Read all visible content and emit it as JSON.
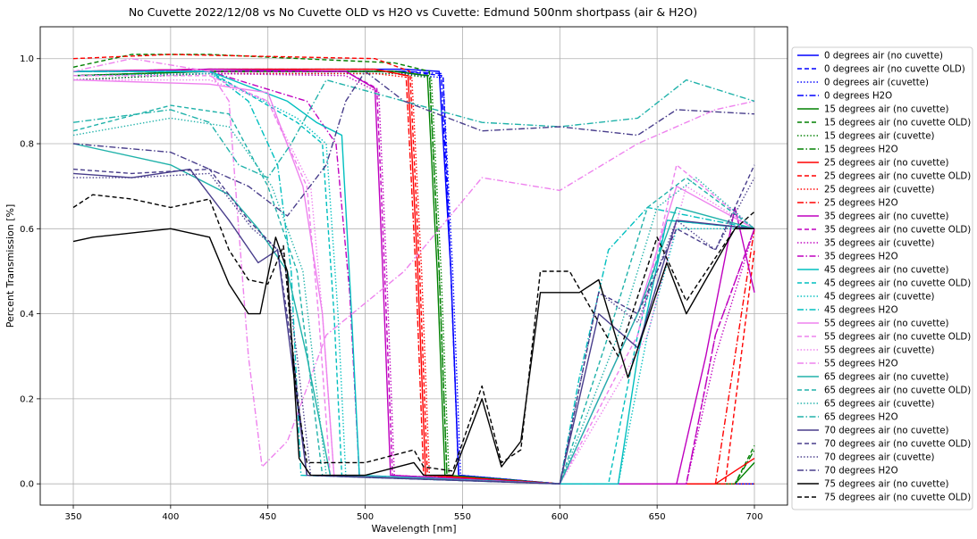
{
  "chart_data": {
    "type": "line",
    "title": "No Cuvette 2022/12/08 vs No Cuvette OLD vs H2O vs Cuvette: Edmund 500nm shortpass (air & H2O)",
    "xlabel": "Wavelength [nm]",
    "ylabel": "Percent Transmission [%]",
    "xlim": [
      333,
      717
    ],
    "ylim": [
      -0.05,
      1.075
    ],
    "xticks": [
      350,
      400,
      450,
      500,
      550,
      600,
      650,
      700
    ],
    "xtick_labels": [
      "350",
      "400",
      "450",
      "500",
      "550",
      "600",
      "650",
      "700"
    ],
    "yticks": [
      0.0,
      0.2,
      0.4,
      0.6,
      0.8,
      1.0
    ],
    "ytick_labels": [
      "0.0",
      "0.2",
      "0.4",
      "0.6",
      "0.8",
      "1.0"
    ],
    "grid": true,
    "legend_position": "right, outside plot",
    "colors": {
      "0": "#0000ff",
      "15": "#008000",
      "25": "#ff0000",
      "35": "#bf00bf",
      "45": "#00bfbf",
      "55": "#ee82ee",
      "65": "#20b2aa",
      "70": "#483d8b",
      "75": "#000000"
    },
    "styles": {
      "air (no cuvette)": "solid",
      "air (no cuvette OLD)": "dashed",
      "air (cuvette)": "dotted",
      "H2O": "dashdot"
    },
    "series": [
      {
        "name": "0 degrees air (no cuvette)",
        "angle": "0",
        "style": "solid",
        "x": [
          350,
          420,
          520,
          538,
          544,
          548,
          600,
          700
        ],
        "y": [
          0.97,
          0.975,
          0.975,
          0.97,
          0.5,
          0.02,
          0.0,
          0.0
        ]
      },
      {
        "name": "0 degrees air (no cuvette OLD)",
        "angle": "0",
        "style": "dashed",
        "x": [
          350,
          420,
          520,
          540,
          544,
          548,
          600,
          700
        ],
        "y": [
          0.96,
          0.97,
          0.97,
          0.96,
          0.5,
          0.02,
          0.0,
          0.0
        ]
      },
      {
        "name": "0 degrees air (cuvette)",
        "angle": "0",
        "style": "dotted",
        "x": [
          350,
          420,
          520,
          540,
          545,
          549,
          600,
          700
        ],
        "y": [
          0.95,
          0.965,
          0.965,
          0.955,
          0.5,
          0.02,
          0.0,
          0.0
        ]
      },
      {
        "name": "0 degrees H2O",
        "angle": "0",
        "style": "dashdot",
        "x": [
          350,
          420,
          520,
          539,
          544,
          548,
          600,
          700
        ],
        "y": [
          0.96,
          0.97,
          0.97,
          0.965,
          0.5,
          0.02,
          0.0,
          0.0
        ]
      },
      {
        "name": "15 degrees air (no cuvette)",
        "angle": "15",
        "style": "solid",
        "x": [
          350,
          420,
          515,
          532,
          537,
          541,
          600,
          690,
          700
        ],
        "y": [
          0.96,
          0.97,
          0.97,
          0.96,
          0.5,
          0.02,
          0.0,
          0.0,
          0.05
        ]
      },
      {
        "name": "15 degrees air (no cuvette OLD)",
        "angle": "15",
        "style": "dashed",
        "x": [
          350,
          380,
          420,
          515,
          533,
          538,
          542,
          600,
          690,
          700
        ],
        "y": [
          0.98,
          1.01,
          1.01,
          0.99,
          0.97,
          0.5,
          0.02,
          0.0,
          0.0,
          0.09
        ]
      },
      {
        "name": "15 degrees air (cuvette)",
        "angle": "15",
        "style": "dotted",
        "x": [
          350,
          420,
          515,
          534,
          539,
          543,
          600,
          700
        ],
        "y": [
          0.95,
          0.965,
          0.965,
          0.955,
          0.5,
          0.02,
          0.0,
          0.0
        ]
      },
      {
        "name": "15 degrees H2O",
        "angle": "15",
        "style": "dashdot",
        "x": [
          350,
          420,
          515,
          533,
          538,
          542,
          600,
          690,
          700
        ],
        "y": [
          0.96,
          0.97,
          0.97,
          0.96,
          0.5,
          0.02,
          0.0,
          0.0,
          0.08
        ]
      },
      {
        "name": "25 degrees air (no cuvette)",
        "angle": "25",
        "style": "solid",
        "x": [
          350,
          420,
          505,
          522,
          527,
          531,
          600,
          680,
          700
        ],
        "y": [
          0.97,
          0.975,
          0.975,
          0.96,
          0.5,
          0.02,
          0.0,
          0.0,
          0.06
        ]
      },
      {
        "name": "25 degrees air (no cuvette OLD)",
        "angle": "25",
        "style": "dashed",
        "x": [
          350,
          400,
          505,
          523,
          528,
          532,
          600,
          685,
          700
        ],
        "y": [
          1.0,
          1.01,
          1.0,
          0.97,
          0.5,
          0.02,
          0.0,
          0.0,
          0.55
        ]
      },
      {
        "name": "25 degrees air (cuvette)",
        "angle": "25",
        "style": "dotted",
        "x": [
          350,
          420,
          505,
          524,
          529,
          533,
          600,
          700
        ],
        "y": [
          0.96,
          0.965,
          0.965,
          0.955,
          0.5,
          0.02,
          0.0,
          0.0
        ]
      },
      {
        "name": "25 degrees H2O",
        "angle": "25",
        "style": "dashdot",
        "x": [
          350,
          420,
          505,
          521,
          526,
          530,
          600,
          680,
          690,
          700
        ],
        "y": [
          0.97,
          0.975,
          0.975,
          0.96,
          0.5,
          0.02,
          0.0,
          0.0,
          0.3,
          0.6
        ]
      },
      {
        "name": "35 degrees air (no cuvette)",
        "angle": "35",
        "style": "solid",
        "x": [
          350,
          420,
          490,
          505,
          509,
          513,
          600,
          660,
          675,
          690,
          700
        ],
        "y": [
          0.97,
          0.975,
          0.97,
          0.93,
          0.5,
          0.02,
          0.0,
          0.0,
          0.3,
          0.65,
          0.45
        ]
      },
      {
        "name": "35 degrees air (no cuvette OLD)",
        "angle": "35",
        "style": "dashed",
        "x": [
          350,
          420,
          490,
          506,
          510,
          514,
          600,
          665,
          680,
          700
        ],
        "y": [
          0.97,
          0.97,
          0.97,
          0.93,
          0.5,
          0.02,
          0.0,
          0.0,
          0.35,
          0.6
        ]
      },
      {
        "name": "35 degrees air (cuvette)",
        "angle": "35",
        "style": "dotted",
        "x": [
          350,
          420,
          490,
          507,
          511,
          515,
          600,
          665,
          680,
          700
        ],
        "y": [
          0.96,
          0.965,
          0.96,
          0.92,
          0.5,
          0.02,
          0.0,
          0.0,
          0.3,
          0.6
        ]
      },
      {
        "name": "35 degrees H2O",
        "angle": "35",
        "style": "dashdot",
        "x": [
          350,
          420,
          470,
          485,
          492,
          497,
          600,
          665,
          680,
          700
        ],
        "y": [
          0.97,
          0.97,
          0.9,
          0.8,
          0.45,
          0.02,
          0.0,
          0.0,
          0.35,
          0.6
        ]
      },
      {
        "name": "45 degrees air (no cuvette)",
        "angle": "45",
        "style": "solid",
        "x": [
          350,
          420,
          460,
          475,
          488,
          493,
          497,
          600,
          630,
          640,
          655,
          700
        ],
        "y": [
          0.97,
          0.97,
          0.9,
          0.85,
          0.82,
          0.4,
          0.02,
          0.0,
          0.0,
          0.3,
          0.62,
          0.6
        ]
      },
      {
        "name": "45 degrees air (no cuvette OLD)",
        "angle": "45",
        "style": "dashed",
        "x": [
          350,
          420,
          465,
          478,
          484,
          488,
          600,
          625,
          640,
          655,
          700
        ],
        "y": [
          0.97,
          0.97,
          0.85,
          0.8,
          0.4,
          0.02,
          0.0,
          0.0,
          0.35,
          0.62,
          0.6
        ]
      },
      {
        "name": "45 degrees air (cuvette)",
        "angle": "45",
        "style": "dotted",
        "x": [
          350,
          420,
          465,
          480,
          486,
          490,
          600,
          630,
          645,
          660,
          700
        ],
        "y": [
          0.96,
          0.965,
          0.86,
          0.8,
          0.4,
          0.02,
          0.0,
          0.0,
          0.35,
          0.6,
          0.6
        ]
      },
      {
        "name": "45 degrees H2O",
        "angle": "45",
        "style": "dashdot",
        "x": [
          350,
          420,
          440,
          455,
          462,
          467,
          600,
          610,
          625,
          645,
          700
        ],
        "y": [
          0.97,
          0.97,
          0.9,
          0.75,
          0.5,
          0.02,
          0.0,
          0.25,
          0.55,
          0.65,
          0.6
        ]
      },
      {
        "name": "55 degrees air (no cuvette)",
        "angle": "55",
        "style": "solid",
        "x": [
          350,
          420,
          450,
          468,
          478,
          484,
          600,
          640,
          660,
          700
        ],
        "y": [
          0.95,
          0.94,
          0.92,
          0.7,
          0.4,
          0.02,
          0.0,
          0.4,
          0.7,
          0.6
        ]
      },
      {
        "name": "55 degrees air (no cuvette OLD)",
        "angle": "55",
        "style": "dashed",
        "x": [
          350,
          420,
          450,
          470,
          476,
          482,
          600,
          640,
          660,
          700
        ],
        "y": [
          0.96,
          0.96,
          0.9,
          0.7,
          0.4,
          0.02,
          0.0,
          0.35,
          0.75,
          0.6
        ]
      },
      {
        "name": "55 degrees air (cuvette)",
        "angle": "55",
        "style": "dotted",
        "x": [
          350,
          420,
          450,
          472,
          478,
          484,
          600,
          645,
          665,
          700
        ],
        "y": [
          0.95,
          0.95,
          0.9,
          0.7,
          0.4,
          0.02,
          0.0,
          0.35,
          0.7,
          0.6
        ]
      },
      {
        "name": "55 degrees H2O",
        "angle": "55",
        "style": "dashdot",
        "x": [
          350,
          380,
          420,
          430,
          440,
          447,
          460,
          480,
          520,
          560,
          600,
          640,
          680,
          700
        ],
        "y": [
          0.97,
          1.0,
          0.97,
          0.9,
          0.3,
          0.04,
          0.1,
          0.35,
          0.5,
          0.72,
          0.69,
          0.8,
          0.88,
          0.9
        ]
      },
      {
        "name": "65 degrees air (no cuvette)",
        "angle": "65",
        "style": "solid",
        "x": [
          350,
          400,
          430,
          445,
          460,
          470,
          482,
          600,
          640,
          660,
          700
        ],
        "y": [
          0.8,
          0.75,
          0.68,
          0.6,
          0.5,
          0.3,
          0.02,
          0.0,
          0.4,
          0.65,
          0.6
        ]
      },
      {
        "name": "65 degrees air (no cuvette OLD)",
        "angle": "65",
        "style": "dashed",
        "x": [
          350,
          400,
          430,
          450,
          465,
          478,
          600,
          625,
          645,
          665,
          700
        ],
        "y": [
          0.83,
          0.89,
          0.87,
          0.7,
          0.5,
          0.02,
          0.0,
          0.35,
          0.65,
          0.72,
          0.6
        ]
      },
      {
        "name": "65 degrees air (cuvette)",
        "angle": "65",
        "style": "dotted",
        "x": [
          350,
          400,
          430,
          452,
          468,
          480,
          600,
          630,
          650,
          670,
          700
        ],
        "y": [
          0.82,
          0.86,
          0.84,
          0.7,
          0.5,
          0.02,
          0.0,
          0.35,
          0.65,
          0.72,
          0.6
        ]
      },
      {
        "name": "65 degrees H2O",
        "angle": "65",
        "style": "dashdot",
        "x": [
          350,
          400,
          420,
          435,
          450,
          462,
          480,
          520,
          560,
          600,
          640,
          665,
          700
        ],
        "y": [
          0.85,
          0.88,
          0.85,
          0.75,
          0.72,
          0.8,
          0.95,
          0.9,
          0.85,
          0.84,
          0.86,
          0.95,
          0.9
        ]
      },
      {
        "name": "70 degrees air (no cuvette)",
        "angle": "70",
        "style": "solid",
        "x": [
          350,
          380,
          410,
          430,
          445,
          455,
          462,
          470,
          600,
          620,
          640,
          660,
          700
        ],
        "y": [
          0.73,
          0.72,
          0.74,
          0.62,
          0.52,
          0.55,
          0.3,
          0.02,
          0.0,
          0.4,
          0.32,
          0.62,
          0.6
        ]
      },
      {
        "name": "70 degrees air (no cuvette OLD)",
        "angle": "70",
        "style": "dashed",
        "x": [
          350,
          380,
          420,
          440,
          455,
          463,
          470,
          600,
          620,
          640,
          660,
          680,
          700
        ],
        "y": [
          0.74,
          0.73,
          0.74,
          0.62,
          0.55,
          0.3,
          0.02,
          0.0,
          0.45,
          0.4,
          0.6,
          0.55,
          0.75
        ]
      },
      {
        "name": "70 degrees air (cuvette)",
        "angle": "70",
        "style": "dotted",
        "x": [
          350,
          380,
          420,
          442,
          458,
          465,
          472,
          600,
          620,
          640,
          660,
          680,
          700
        ],
        "y": [
          0.72,
          0.72,
          0.73,
          0.6,
          0.54,
          0.3,
          0.02,
          0.0,
          0.45,
          0.38,
          0.62,
          0.55,
          0.72
        ]
      },
      {
        "name": "70 degrees H2O",
        "angle": "70",
        "style": "dashdot",
        "x": [
          350,
          400,
          440,
          460,
          480,
          490,
          500,
          520,
          560,
          600,
          640,
          660,
          700
        ],
        "y": [
          0.8,
          0.78,
          0.7,
          0.63,
          0.75,
          0.9,
          0.97,
          0.9,
          0.83,
          0.84,
          0.82,
          0.88,
          0.87
        ]
      },
      {
        "name": "75 degrees air (no cuvette)",
        "angle": "75",
        "style": "solid",
        "x": [
          350,
          360,
          380,
          400,
          420,
          430,
          440,
          446,
          454,
          460,
          466,
          472,
          500,
          525,
          530,
          545,
          560,
          570,
          580,
          590,
          610,
          620,
          635,
          655,
          665,
          690,
          700
        ],
        "y": [
          0.57,
          0.58,
          0.59,
          0.6,
          0.58,
          0.47,
          0.4,
          0.4,
          0.58,
          0.5,
          0.06,
          0.02,
          0.02,
          0.05,
          0.02,
          0.02,
          0.2,
          0.04,
          0.1,
          0.45,
          0.45,
          0.48,
          0.25,
          0.52,
          0.4,
          0.6,
          0.6
        ]
      },
      {
        "name": "75 degrees air (no cuvette OLD)",
        "angle": "75",
        "style": "dashed",
        "x": [
          350,
          360,
          380,
          400,
          420,
          430,
          440,
          450,
          458,
          465,
          470,
          500,
          525,
          530,
          545,
          560,
          570,
          580,
          590,
          605,
          630,
          650,
          665,
          690,
          700
        ],
        "y": [
          0.65,
          0.68,
          0.67,
          0.65,
          0.67,
          0.55,
          0.48,
          0.47,
          0.56,
          0.2,
          0.05,
          0.05,
          0.08,
          0.04,
          0.03,
          0.23,
          0.05,
          0.08,
          0.5,
          0.5,
          0.3,
          0.58,
          0.43,
          0.6,
          0.64
        ]
      }
    ]
  }
}
